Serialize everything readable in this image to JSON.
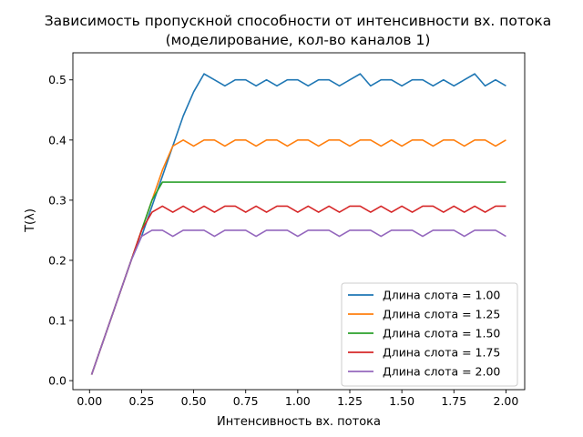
{
  "chart_data": {
    "type": "line",
    "title": "Зависимость пропускной способности от интенсивности вх. потока",
    "subtitle": "(моделирование, кол-во каналов 1)",
    "xlabel": "Интенсивность вх. потока",
    "ylabel": "T(λ)",
    "xlim": [
      -0.08,
      2.09
    ],
    "ylim": [
      -0.015,
      0.545
    ],
    "xticks": [
      0.0,
      0.25,
      0.5,
      0.75,
      1.0,
      1.25,
      1.5,
      1.75,
      2.0
    ],
    "xtick_labels": [
      "0.00",
      "0.25",
      "0.50",
      "0.75",
      "1.00",
      "1.25",
      "1.50",
      "1.75",
      "2.00"
    ],
    "yticks": [
      0.0,
      0.1,
      0.2,
      0.3,
      0.4,
      0.5
    ],
    "ytick_labels": [
      "0.0",
      "0.1",
      "0.2",
      "0.3",
      "0.4",
      "0.5"
    ],
    "grid": false,
    "legend_position": "lower-right",
    "x": [
      0.01,
      0.05,
      0.1,
      0.15,
      0.2,
      0.25,
      0.3,
      0.35,
      0.4,
      0.45,
      0.5,
      0.55,
      0.6,
      0.65,
      0.7,
      0.75,
      0.8,
      0.85,
      0.9,
      0.95,
      1.0,
      1.05,
      1.1,
      1.15,
      1.2,
      1.25,
      1.3,
      1.35,
      1.4,
      1.45,
      1.5,
      1.55,
      1.6,
      1.65,
      1.7,
      1.75,
      1.8,
      1.85,
      1.9,
      1.95,
      2.0
    ],
    "series": [
      {
        "name": "Длина слота = 1.00",
        "color": "#1f77b4",
        "values": [
          0.01,
          0.05,
          0.1,
          0.15,
          0.2,
          0.24,
          0.29,
          0.34,
          0.39,
          0.44,
          0.48,
          0.51,
          0.5,
          0.49,
          0.5,
          0.5,
          0.49,
          0.5,
          0.49,
          0.5,
          0.5,
          0.49,
          0.5,
          0.5,
          0.49,
          0.5,
          0.51,
          0.49,
          0.5,
          0.5,
          0.49,
          0.5,
          0.5,
          0.49,
          0.5,
          0.49,
          0.5,
          0.51,
          0.49,
          0.5,
          0.49
        ]
      },
      {
        "name": "Длина слота = 1.25",
        "color": "#ff7f0e",
        "values": [
          0.01,
          0.05,
          0.1,
          0.15,
          0.2,
          0.25,
          0.3,
          0.35,
          0.39,
          0.4,
          0.39,
          0.4,
          0.4,
          0.39,
          0.4,
          0.4,
          0.39,
          0.4,
          0.4,
          0.39,
          0.4,
          0.4,
          0.39,
          0.4,
          0.4,
          0.39,
          0.4,
          0.4,
          0.39,
          0.4,
          0.39,
          0.4,
          0.4,
          0.39,
          0.4,
          0.4,
          0.39,
          0.4,
          0.4,
          0.39,
          0.4
        ]
      },
      {
        "name": "Длина слота = 1.50",
        "color": "#2ca02c",
        "values": [
          0.01,
          0.05,
          0.1,
          0.15,
          0.2,
          0.25,
          0.3,
          0.33,
          0.33,
          0.33,
          0.33,
          0.33,
          0.33,
          0.33,
          0.33,
          0.33,
          0.33,
          0.33,
          0.33,
          0.33,
          0.33,
          0.33,
          0.33,
          0.33,
          0.33,
          0.33,
          0.33,
          0.33,
          0.33,
          0.33,
          0.33,
          0.33,
          0.33,
          0.33,
          0.33,
          0.33,
          0.33,
          0.33,
          0.33,
          0.33,
          0.33
        ]
      },
      {
        "name": "Длина слота = 1.75",
        "color": "#d62728",
        "values": [
          0.01,
          0.05,
          0.1,
          0.15,
          0.2,
          0.25,
          0.28,
          0.29,
          0.28,
          0.29,
          0.28,
          0.29,
          0.28,
          0.29,
          0.29,
          0.28,
          0.29,
          0.28,
          0.29,
          0.29,
          0.28,
          0.29,
          0.28,
          0.29,
          0.28,
          0.29,
          0.29,
          0.28,
          0.29,
          0.28,
          0.29,
          0.28,
          0.29,
          0.29,
          0.28,
          0.29,
          0.28,
          0.29,
          0.28,
          0.29,
          0.29
        ]
      },
      {
        "name": "Длина слота = 2.00",
        "color": "#9467bd",
        "values": [
          0.01,
          0.05,
          0.1,
          0.15,
          0.2,
          0.24,
          0.25,
          0.25,
          0.24,
          0.25,
          0.25,
          0.25,
          0.24,
          0.25,
          0.25,
          0.25,
          0.24,
          0.25,
          0.25,
          0.25,
          0.24,
          0.25,
          0.25,
          0.25,
          0.24,
          0.25,
          0.25,
          0.25,
          0.24,
          0.25,
          0.25,
          0.25,
          0.24,
          0.25,
          0.25,
          0.25,
          0.24,
          0.25,
          0.25,
          0.25,
          0.24
        ]
      }
    ]
  }
}
